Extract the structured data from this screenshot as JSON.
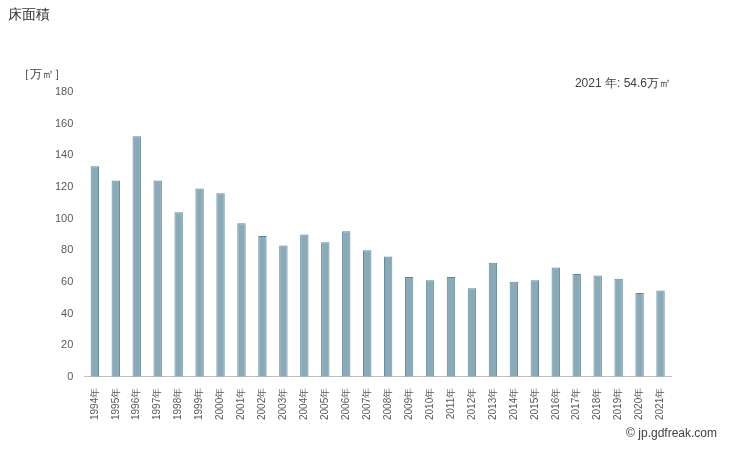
{
  "chart_data": {
    "type": "bar",
    "title": "床面積",
    "y_label": "［万㎡］",
    "annotations": [
      "2021 年: 54.6万㎡",
      "© jp.gdfreak.com"
    ],
    "categories": [
      "1994年",
      "1995年",
      "1996年",
      "1997年",
      "1998年",
      "1999年",
      "2000年",
      "2001年",
      "2002年",
      "2003年",
      "2004年",
      "2005年",
      "2006年",
      "2007年",
      "2008年",
      "2009年",
      "2010年",
      "2011年",
      "2012年",
      "2013年",
      "2014年",
      "2015年",
      "2016年",
      "2017年",
      "2018年",
      "2019年",
      "2020年",
      "2021年"
    ],
    "values": [
      133,
      124,
      152,
      124,
      104,
      119,
      116,
      97,
      89,
      83,
      90,
      85,
      92,
      80,
      76,
      63,
      61,
      63,
      56,
      72,
      60,
      61,
      69,
      65,
      64,
      62,
      53,
      54.6
    ],
    "color": "#8aaab8",
    "ylim": [
      0,
      180
    ],
    "yticks": [
      0,
      20,
      40,
      60,
      80,
      100,
      120,
      140,
      160,
      180
    ],
    "grid": false
  }
}
